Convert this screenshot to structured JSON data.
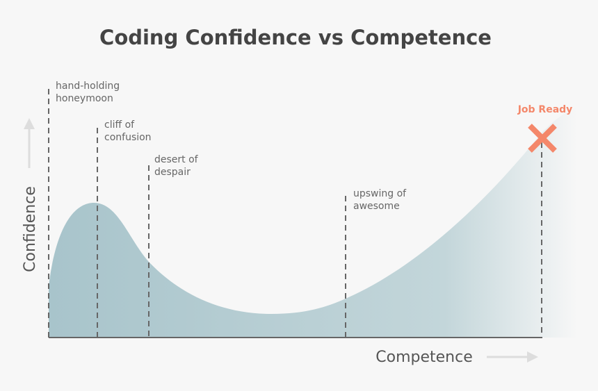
{
  "title": "Coding Confidence vs Competence",
  "phases": [
    {
      "lines": [
        "hand-holding",
        "honeymoon"
      ]
    },
    {
      "lines": [
        "cliff of",
        "confusion"
      ]
    },
    {
      "lines": [
        "desert of",
        "despair"
      ]
    },
    {
      "lines": [
        "upswing of",
        "awesome"
      ]
    }
  ],
  "goal": "Job Ready",
  "y_axis_label": "Confidence",
  "x_axis_label": "Competence"
}
